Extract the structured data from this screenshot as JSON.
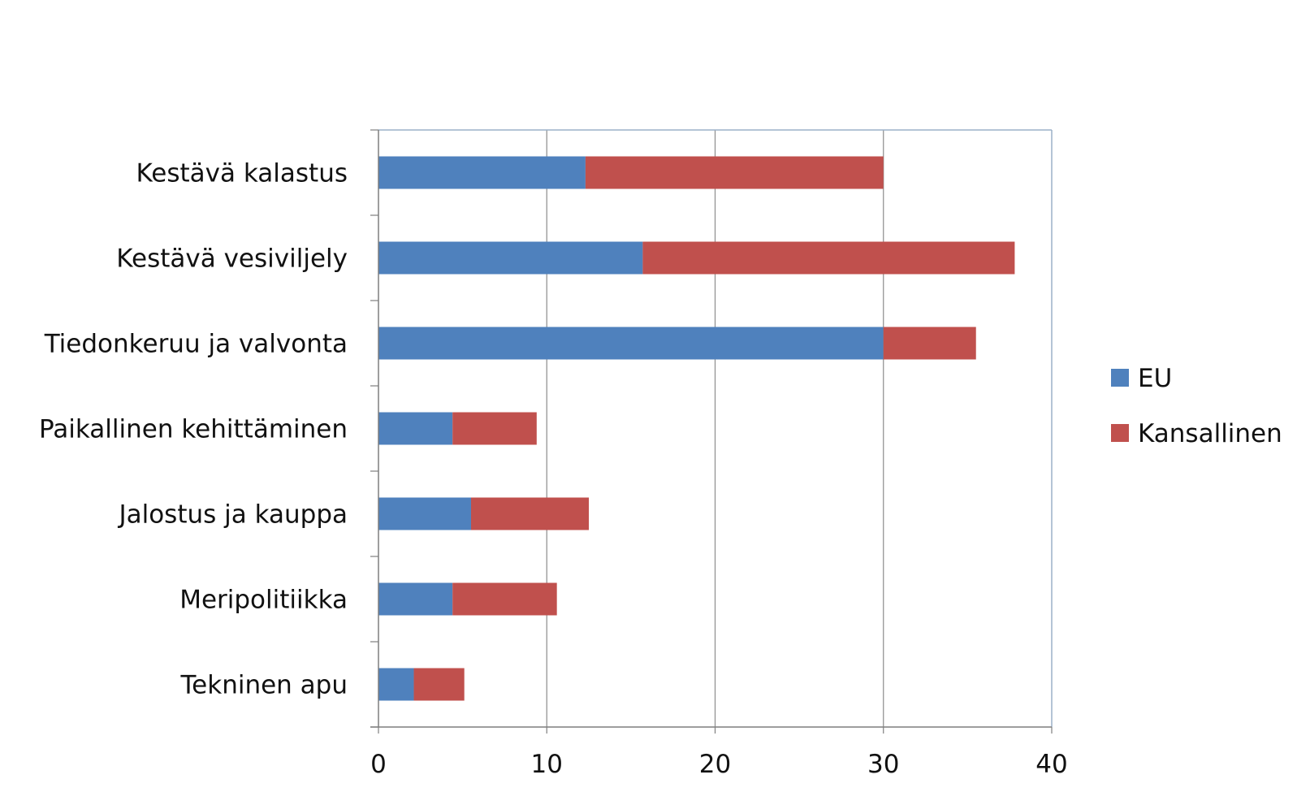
{
  "chart_data": {
    "type": "bar",
    "orientation": "horizontal",
    "stacked": true,
    "categories": [
      "Kestävä kalastus",
      "Kestävä vesiviljely",
      "Tiedonkeruu ja valvonta",
      "Paikallinen kehittäminen",
      "Jalostus ja kauppa",
      "Meripolitiikka",
      "Tekninen apu"
    ],
    "series": [
      {
        "name": "EU",
        "color": "#4f81bd",
        "values": [
          12.3,
          15.7,
          30.0,
          4.4,
          5.5,
          4.4,
          2.1
        ]
      },
      {
        "name": "Kansallinen",
        "color": "#c0504d",
        "values": [
          17.7,
          22.1,
          5.5,
          5.0,
          7.0,
          6.2,
          3.0
        ]
      }
    ],
    "xlim": [
      0,
      40
    ],
    "x_ticks": [
      "0",
      "10",
      "20",
      "30",
      "40"
    ],
    "grid": true,
    "legend_position": "right",
    "title": "",
    "xlabel": "",
    "ylabel": ""
  }
}
